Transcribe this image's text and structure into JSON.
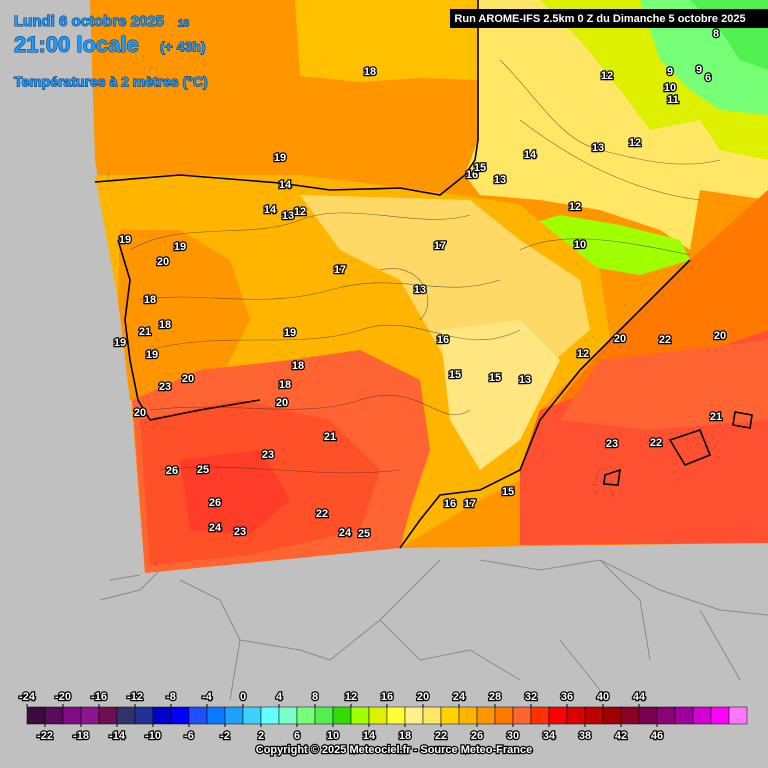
{
  "header": {
    "date": "Lundi 6 octobre 2025",
    "date_suffix": "18",
    "time": "21:00 locale",
    "lead": "(+ 43h)",
    "parameter": "Températures à 2 mètres (°C)",
    "run": "Run AROME-IFS 2.5km 0 Z du Dimanche 5 octobre 2025"
  },
  "map_labels": [
    18,
    19,
    14,
    19,
    19,
    20,
    18,
    21,
    18,
    19,
    19,
    19,
    17,
    18,
    23,
    20,
    20,
    20,
    18,
    21,
    26,
    25,
    26,
    24,
    23,
    22,
    24,
    25,
    23,
    16,
    17,
    23,
    22,
    21,
    22,
    20,
    20,
    12,
    15,
    15,
    15,
    16,
    13,
    17,
    13,
    16,
    13,
    14,
    12,
    12,
    13,
    12,
    11,
    10,
    9,
    9,
    6,
    8,
    10,
    15,
    14,
    13,
    12
  ],
  "legend": {
    "colors": [
      "#3c0a3c",
      "#5a0a5a",
      "#820a82",
      "#8c148c",
      "#6e0f50",
      "#32326e",
      "#1e3296",
      "#0000c8",
      "#0000ff",
      "#1e50ff",
      "#0a78ff",
      "#1ea0ff",
      "#3cd2ff",
      "#64ffff",
      "#78ffc8",
      "#78ff78",
      "#50f050",
      "#32dc00",
      "#a0ff00",
      "#dcf000",
      "#ffff32",
      "#fff08c",
      "#ffe664",
      "#ffd200",
      "#ffb400",
      "#ff9600",
      "#ff7800",
      "#ff6432",
      "#ff3200",
      "#ff0000",
      "#dc0000",
      "#be0000",
      "#a00000",
      "#8c0028",
      "#780050",
      "#8c0078",
      "#a000a0",
      "#d200d2",
      "#ff00ff",
      "#ff78ff"
    ],
    "ticks_top": [
      -24,
      -20,
      -16,
      -12,
      -8,
      -4,
      0,
      4,
      8,
      12,
      16,
      20,
      24,
      28,
      32,
      36,
      40,
      44
    ],
    "ticks_bottom": [
      -22,
      -18,
      -14,
      -10,
      -6,
      -2,
      2,
      6,
      10,
      14,
      18,
      22,
      26,
      30,
      34,
      38,
      42,
      46
    ]
  },
  "copyright": "Copyright © 2025 Meteociel.fr - Source Meteo-France"
}
